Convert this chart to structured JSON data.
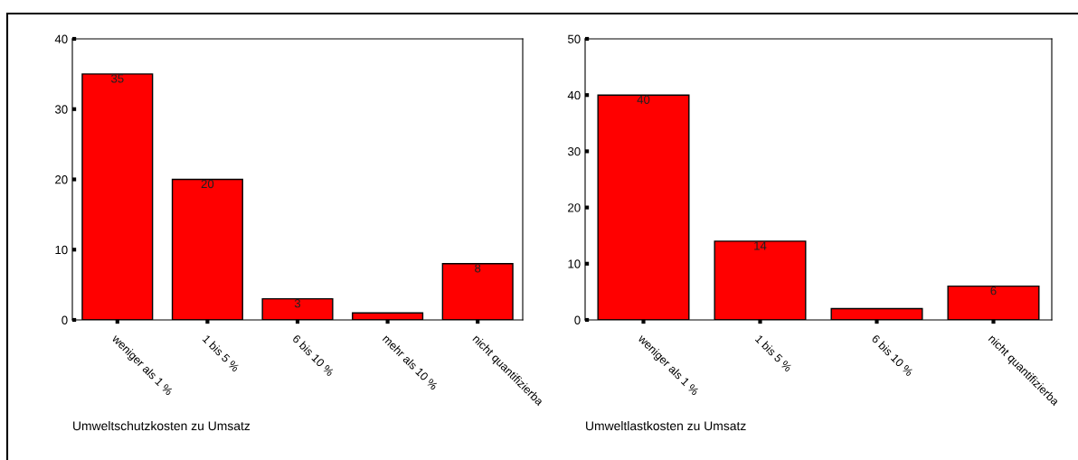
{
  "chart_data": [
    {
      "type": "bar",
      "xlabel": "Umweltschutzkosten zu Umsatz",
      "categories": [
        "weniger als 1 %",
        "1 bis 5 %",
        "6 bis 10 %",
        "mehr als 10 %",
        "nicht quantifizierba"
      ],
      "values": [
        35,
        20,
        3,
        1,
        8
      ],
      "value_labels": [
        "35",
        "20",
        "3",
        null,
        "8"
      ],
      "color": "#ff0000",
      "ylim": [
        0,
        40
      ],
      "yticks": [
        0,
        10,
        20,
        30,
        40
      ],
      "grid": false,
      "legend": false
    },
    {
      "type": "bar",
      "xlabel": "Umweltlastkosten zu Umsatz",
      "categories": [
        "weniger als 1 %",
        "1 bis 5 %",
        "6 bis 10 %",
        "nicht quantifizierba"
      ],
      "values": [
        40,
        14,
        2,
        6
      ],
      "value_labels": [
        "40",
        "14",
        null,
        "6"
      ],
      "color": "#ff0000",
      "ylim": [
        0,
        50
      ],
      "yticks": [
        0,
        10,
        20,
        30,
        40,
        50
      ],
      "grid": false,
      "legend": false
    }
  ]
}
